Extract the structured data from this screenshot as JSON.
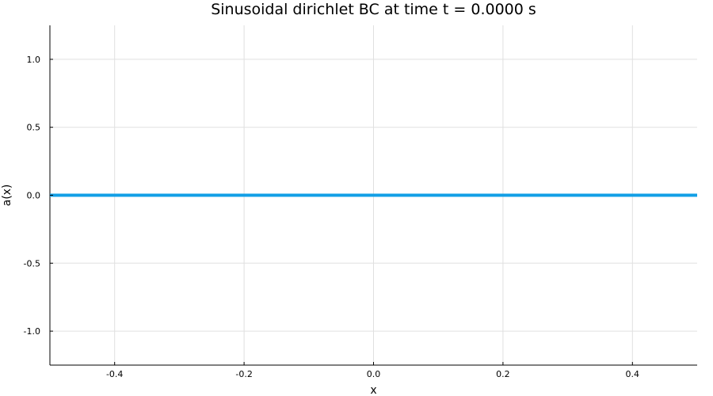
{
  "chart_data": {
    "type": "line",
    "title": "Sinusoidal dirichlet BC at time t = 0.0000 s",
    "xlabel": "x",
    "ylabel": "a(x)",
    "xlim": [
      -0.5,
      0.5
    ],
    "ylim": [
      -1.25,
      1.25
    ],
    "xticks": [
      -0.4,
      -0.2,
      0.0,
      0.2,
      0.4
    ],
    "xtick_labels": [
      "-0.4",
      "-0.2",
      "0.0",
      "0.2",
      "0.4"
    ],
    "yticks": [
      -1.0,
      -0.5,
      0.0,
      0.5,
      1.0
    ],
    "ytick_labels": [
      "-1.0",
      "-0.5",
      "0.0",
      "0.5",
      "1.0"
    ],
    "grid": true,
    "legend": "none",
    "series": [
      {
        "color": "#129fe6",
        "x": [
          -0.5,
          -0.4,
          -0.3,
          -0.2,
          -0.1,
          0.0,
          0.1,
          0.2,
          0.3,
          0.4,
          0.5
        ],
        "y": [
          0,
          0,
          0,
          0,
          0,
          0,
          0,
          0,
          0,
          0,
          0
        ]
      }
    ]
  }
}
